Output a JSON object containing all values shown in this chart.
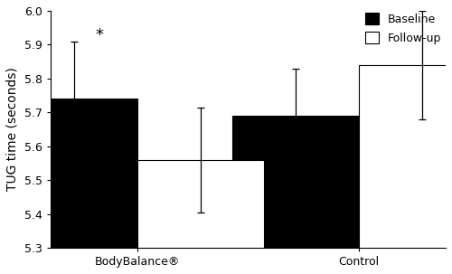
{
  "groups": [
    "BodyBalance®",
    "Control"
  ],
  "baseline_means": [
    5.74,
    5.69
  ],
  "followup_means": [
    5.56,
    5.84
  ],
  "baseline_errors": [
    0.17,
    0.14
  ],
  "followup_errors": [
    0.155,
    0.16
  ],
  "ymin": 5.3,
  "ylim": [
    5.3,
    6.0
  ],
  "yticks": [
    5.3,
    5.4,
    5.5,
    5.6,
    5.7,
    5.8,
    5.9,
    6.0
  ],
  "ylabel": "TUG time (seconds)",
  "bar_width": 0.32,
  "group_positions": [
    0.22,
    0.78
  ],
  "baseline_color": "#000000",
  "followup_color": "#ffffff",
  "baseline_label": "Baseline",
  "followup_label": "Follow-up",
  "star_text": "*",
  "error_capsize": 3,
  "background_color": "#ffffff",
  "tick_fontsize": 9,
  "label_fontsize": 10
}
